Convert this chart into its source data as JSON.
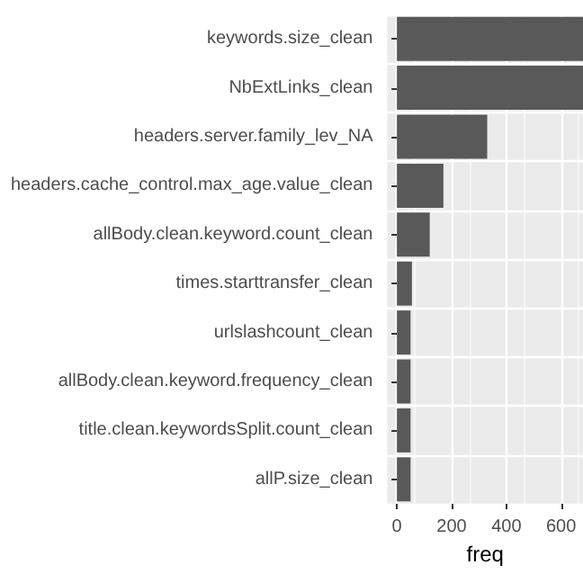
{
  "chart_data": {
    "type": "bar",
    "orientation": "horizontal",
    "xlabel": "freq",
    "categories": [
      "keywords.size_clean",
      "NbExtLinks_clean",
      "headers.server.family_lev_NA",
      "headers.cache_control.max_age.value_clean",
      "allBody.clean.keyword.count_clean",
      "times.starttransfer_clean",
      "urlslashcount_clean",
      "allBody.clean.keyword.frequency_clean",
      "title.clean.keywordsSplit.count_clean",
      "allP.size_clean"
    ],
    "values": [
      680,
      680,
      330,
      170,
      120,
      55,
      50,
      50,
      50,
      50
    ],
    "color": "#595959",
    "xlim": [
      -35,
      680
    ],
    "xticks": [
      0,
      200,
      400,
      600
    ],
    "grid": true
  }
}
